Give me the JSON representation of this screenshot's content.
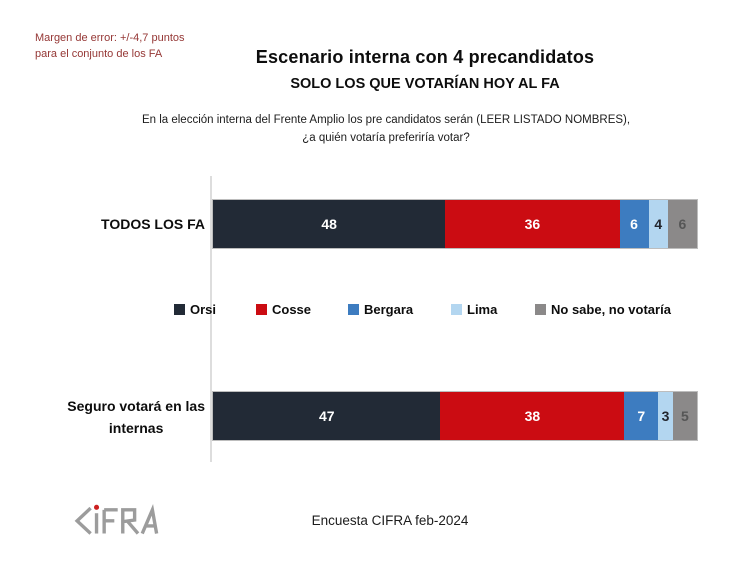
{
  "header": {
    "margin_note_line1": "Margen de error: +/-4,7 puntos",
    "margin_note_line2": "para el conjunto de los FA",
    "title": "Escenario interna con 4 precandidatos",
    "subtitle": "SOLO LOS QUE VOTARÍAN HOY AL FA",
    "question_line1": "En la elección interna del Frente Amplio los pre candidatos serán (LEER LISTADO NOMBRES),",
    "question_line2": "¿a quién votaría preferiría votar?"
  },
  "chart_data": {
    "type": "bar",
    "orientation": "horizontal_stacked",
    "title": "Escenario interna con 4 precandidatos",
    "subtitle": "SOLO LOS QUE VOTARÍAN HOY AL FA",
    "categories": [
      "TODOS LOS FA",
      "Seguro votará en las internas"
    ],
    "category_label_lines": [
      [
        "TODOS LOS FA"
      ],
      [
        "Seguro votará en las",
        "internas"
      ]
    ],
    "series": [
      {
        "name": "Orsi",
        "values": [
          48,
          47
        ],
        "color": "#222a36",
        "label_color": "#ffffff"
      },
      {
        "name": "Cosse",
        "values": [
          36,
          38
        ],
        "color": "#cb0c12",
        "label_color": "#ffffff"
      },
      {
        "name": "Bergara",
        "values": [
          6,
          7
        ],
        "color": "#3d7cc0",
        "label_color": "#ffffff"
      },
      {
        "name": "Lima",
        "values": [
          4,
          3
        ],
        "color": "#b3d6f0",
        "label_color": "#23262e"
      },
      {
        "name": "No sabe, no votaría",
        "values": [
          6,
          5
        ],
        "color": "#8b8989",
        "label_color": "#565656"
      }
    ],
    "x_range": [
      0,
      100
    ],
    "values_unit": "percent",
    "grid": false,
    "legend_position": "middle-between-bars"
  },
  "footer": {
    "logo_text": "CIFRA",
    "logo_color": "#9c9c9c",
    "logo_dot_color": "#cc2020",
    "source": "Encuesta CIFRA feb-2024"
  }
}
